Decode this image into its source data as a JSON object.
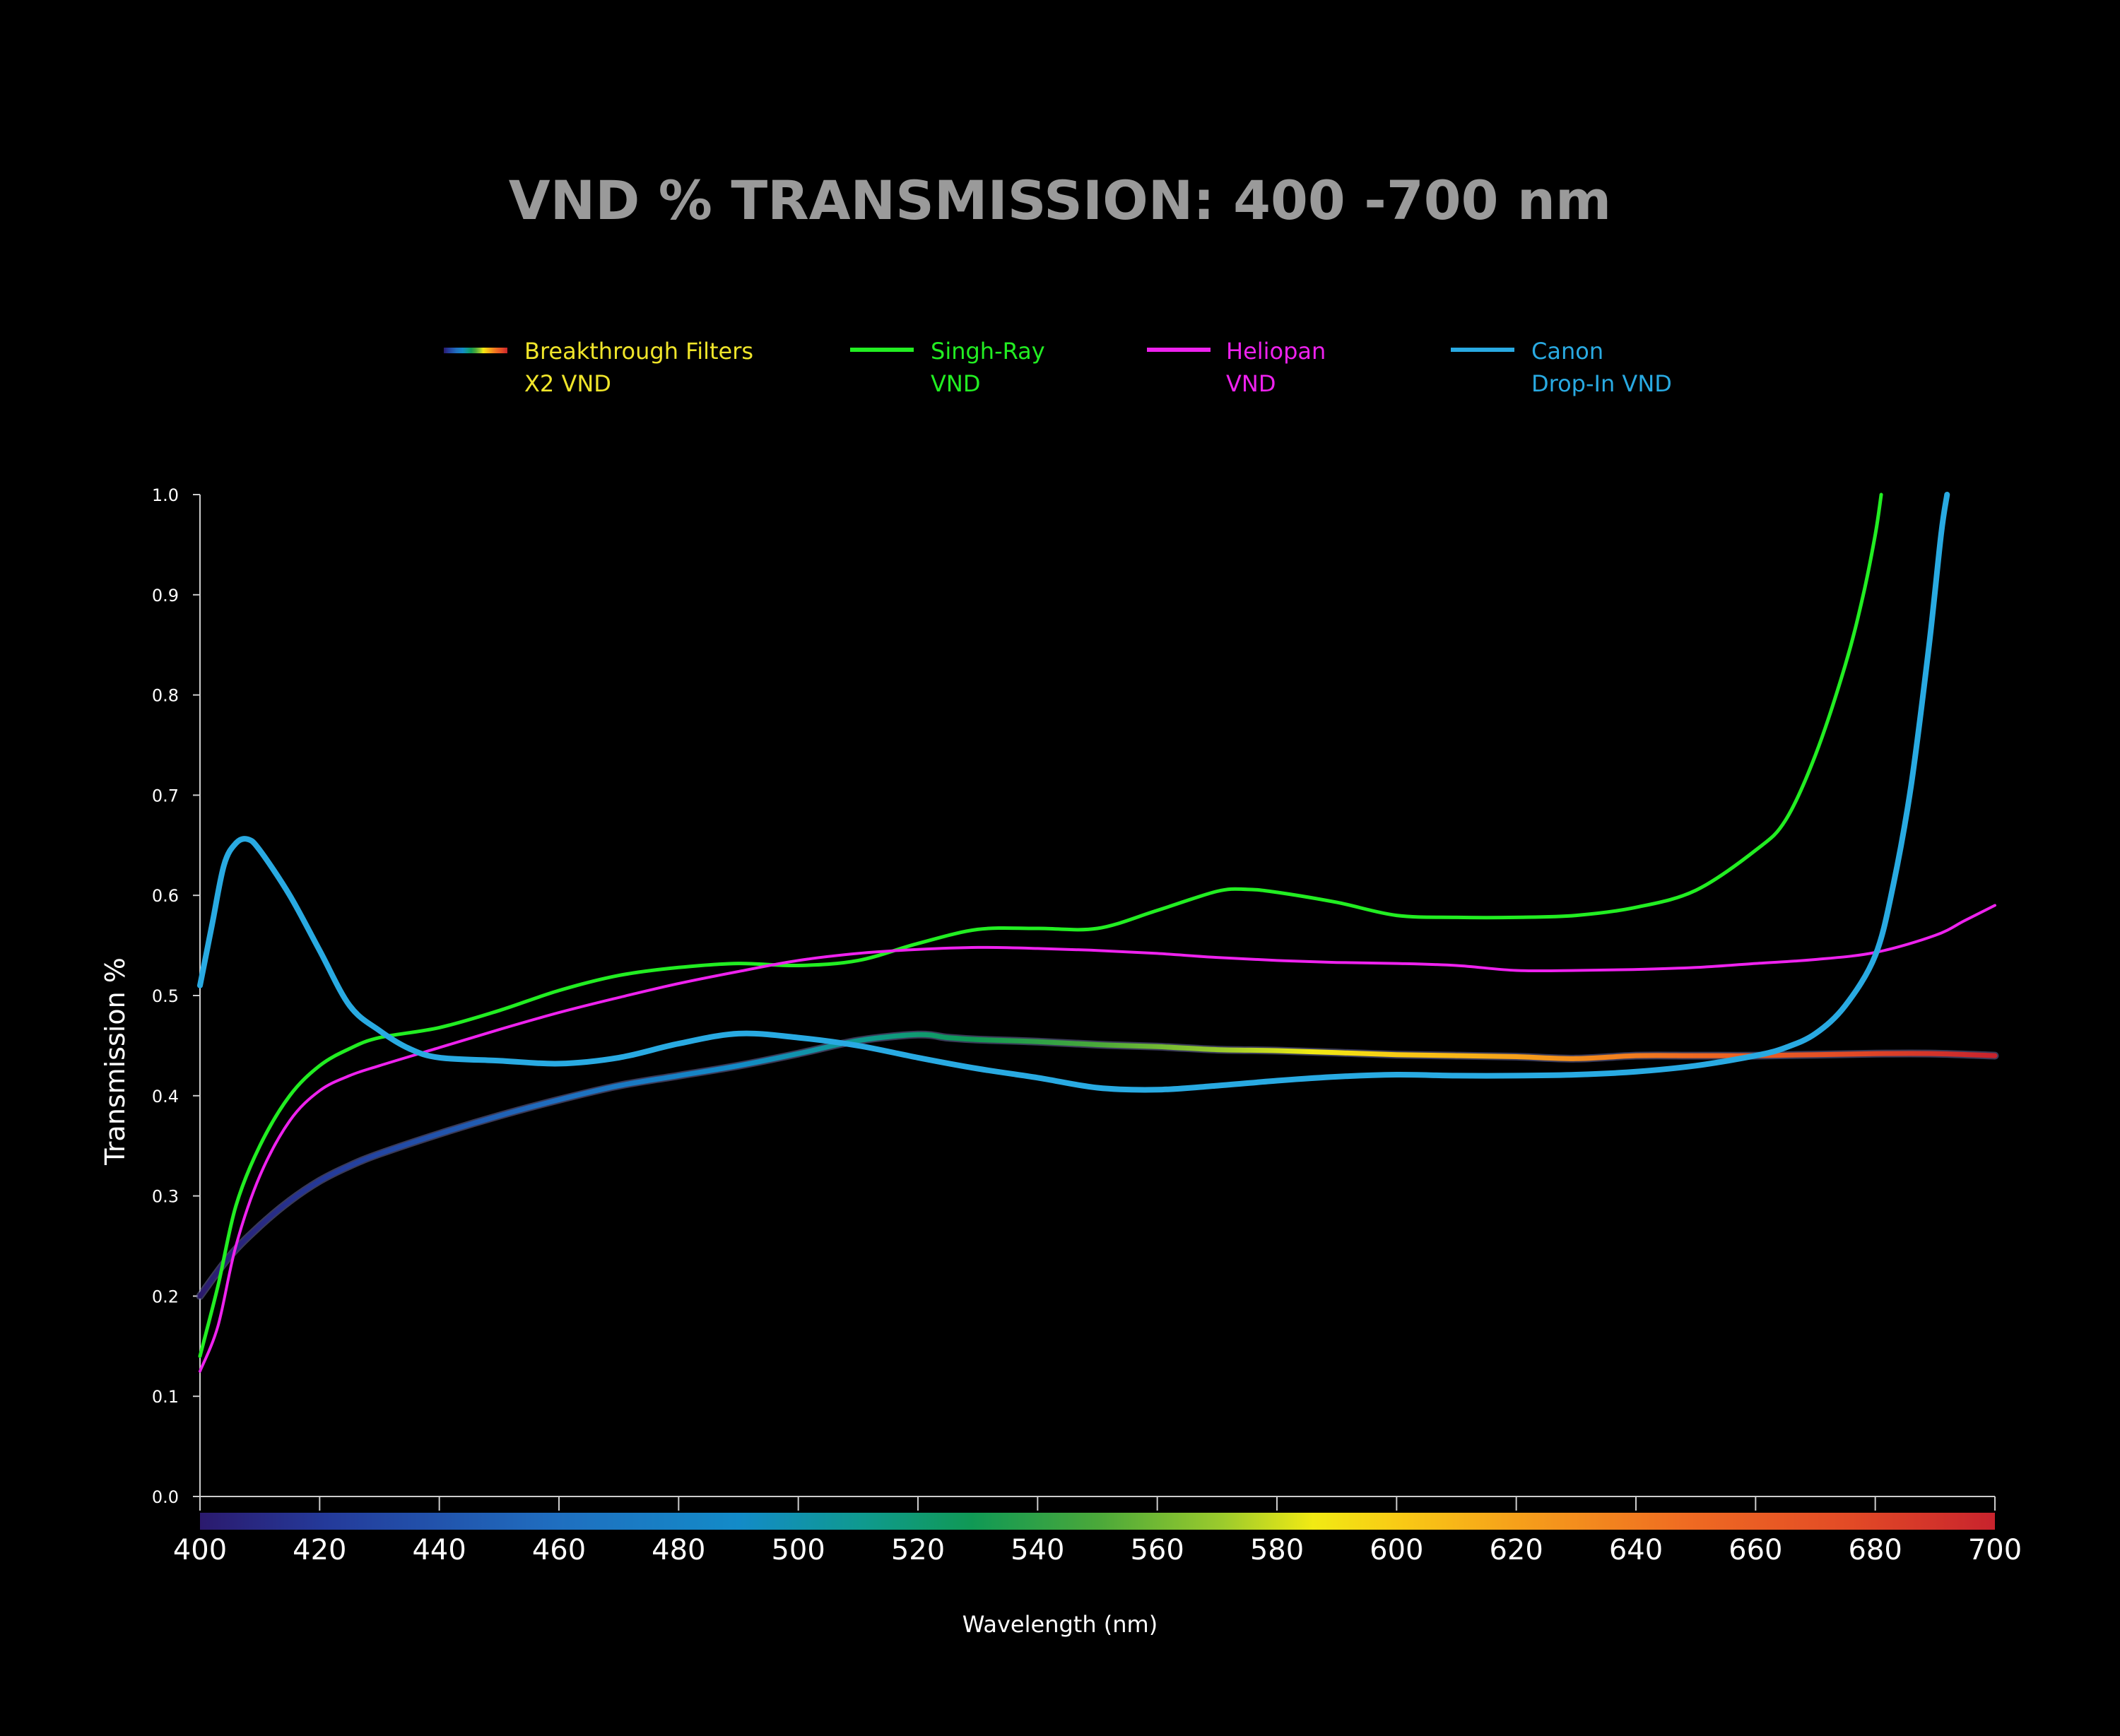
{
  "chart_data": {
    "type": "line",
    "title": "VND % TRANSMISSION: 400 -700 nm",
    "xlabel": "Wavelength (nm)",
    "ylabel": "Transmission %",
    "xlim": [
      400,
      700
    ],
    "ylim": [
      0,
      1.0
    ],
    "x_ticks": [
      "400",
      "420",
      "440",
      "460",
      "480",
      "500",
      "520",
      "540",
      "560",
      "580",
      "600",
      "620",
      "640",
      "660",
      "680",
      "700"
    ],
    "y_ticks": [
      "0.0",
      "0.1",
      "0.2",
      "0.3",
      "0.4",
      "0.5",
      "0.6",
      "0.7",
      "0.8",
      "0.9",
      "1.0"
    ],
    "grid": false,
    "legend_position": "top",
    "spectrum_bar": true,
    "series": [
      {
        "name_line1": "Breakthrough Filters",
        "name_line2": "X2 VND",
        "color": "spectrum",
        "label_color": "#f0e52a",
        "points": [
          [
            400,
            0.2
          ],
          [
            405,
            0.24
          ],
          [
            410,
            0.27
          ],
          [
            415,
            0.295
          ],
          [
            420,
            0.315
          ],
          [
            425,
            0.33
          ],
          [
            430,
            0.342
          ],
          [
            440,
            0.362
          ],
          [
            450,
            0.38
          ],
          [
            460,
            0.396
          ],
          [
            470,
            0.41
          ],
          [
            480,
            0.42
          ],
          [
            490,
            0.43
          ],
          [
            500,
            0.442
          ],
          [
            510,
            0.455
          ],
          [
            520,
            0.461
          ],
          [
            525,
            0.458
          ],
          [
            530,
            0.456
          ],
          [
            540,
            0.454
          ],
          [
            550,
            0.451
          ],
          [
            560,
            0.449
          ],
          [
            570,
            0.446
          ],
          [
            580,
            0.445
          ],
          [
            590,
            0.443
          ],
          [
            600,
            0.441
          ],
          [
            610,
            0.44
          ],
          [
            620,
            0.439
          ],
          [
            630,
            0.437
          ],
          [
            640,
            0.44
          ],
          [
            650,
            0.44
          ],
          [
            660,
            0.44
          ],
          [
            670,
            0.441
          ],
          [
            680,
            0.442
          ],
          [
            690,
            0.442
          ],
          [
            700,
            0.44
          ]
        ]
      },
      {
        "name_line1": "Singh-Ray",
        "name_line2": "VND",
        "color": "#22ee22",
        "label_color": "#22ee22",
        "points": [
          [
            400,
            0.14
          ],
          [
            403,
            0.21
          ],
          [
            406,
            0.29
          ],
          [
            410,
            0.35
          ],
          [
            415,
            0.4
          ],
          [
            420,
            0.43
          ],
          [
            425,
            0.447
          ],
          [
            430,
            0.458
          ],
          [
            440,
            0.468
          ],
          [
            450,
            0.485
          ],
          [
            460,
            0.505
          ],
          [
            470,
            0.52
          ],
          [
            480,
            0.528
          ],
          [
            490,
            0.532
          ],
          [
            500,
            0.53
          ],
          [
            510,
            0.535
          ],
          [
            520,
            0.552
          ],
          [
            530,
            0.566
          ],
          [
            540,
            0.567
          ],
          [
            550,
            0.567
          ],
          [
            560,
            0.585
          ],
          [
            570,
            0.604
          ],
          [
            575,
            0.606
          ],
          [
            580,
            0.603
          ],
          [
            590,
            0.593
          ],
          [
            600,
            0.58
          ],
          [
            610,
            0.578
          ],
          [
            620,
            0.578
          ],
          [
            630,
            0.58
          ],
          [
            640,
            0.588
          ],
          [
            650,
            0.605
          ],
          [
            660,
            0.645
          ],
          [
            665,
            0.675
          ],
          [
            670,
            0.74
          ],
          [
            675,
            0.83
          ],
          [
            678,
            0.9
          ],
          [
            680,
            0.96
          ],
          [
            681,
            1.0
          ]
        ]
      },
      {
        "name_line1": "Heliopan",
        "name_line2": "VND",
        "color": "#ee22ee",
        "label_color": "#ee22ee",
        "points": [
          [
            400,
            0.125
          ],
          [
            403,
            0.17
          ],
          [
            406,
            0.25
          ],
          [
            410,
            0.32
          ],
          [
            415,
            0.375
          ],
          [
            420,
            0.405
          ],
          [
            425,
            0.42
          ],
          [
            430,
            0.43
          ],
          [
            440,
            0.448
          ],
          [
            450,
            0.466
          ],
          [
            460,
            0.483
          ],
          [
            470,
            0.498
          ],
          [
            480,
            0.512
          ],
          [
            490,
            0.524
          ],
          [
            500,
            0.535
          ],
          [
            510,
            0.542
          ],
          [
            520,
            0.546
          ],
          [
            530,
            0.548
          ],
          [
            540,
            0.547
          ],
          [
            550,
            0.545
          ],
          [
            560,
            0.542
          ],
          [
            570,
            0.538
          ],
          [
            580,
            0.535
          ],
          [
            590,
            0.533
          ],
          [
            600,
            0.532
          ],
          [
            610,
            0.53
          ],
          [
            620,
            0.525
          ],
          [
            630,
            0.525
          ],
          [
            640,
            0.526
          ],
          [
            650,
            0.528
          ],
          [
            660,
            0.532
          ],
          [
            670,
            0.536
          ],
          [
            680,
            0.543
          ],
          [
            690,
            0.56
          ],
          [
            695,
            0.575
          ],
          [
            700,
            0.59
          ]
        ]
      },
      {
        "name_line1": "Canon",
        "name_line2": "Drop-In VND",
        "color": "#29aae2",
        "label_color": "#29aae2",
        "points": [
          [
            400,
            0.51
          ],
          [
            402,
            0.57
          ],
          [
            404,
            0.63
          ],
          [
            406,
            0.652
          ],
          [
            408,
            0.656
          ],
          [
            410,
            0.645
          ],
          [
            415,
            0.6
          ],
          [
            420,
            0.545
          ],
          [
            425,
            0.49
          ],
          [
            430,
            0.465
          ],
          [
            435,
            0.447
          ],
          [
            440,
            0.438
          ],
          [
            450,
            0.435
          ],
          [
            460,
            0.432
          ],
          [
            470,
            0.438
          ],
          [
            480,
            0.452
          ],
          [
            490,
            0.462
          ],
          [
            500,
            0.458
          ],
          [
            510,
            0.45
          ],
          [
            520,
            0.438
          ],
          [
            530,
            0.427
          ],
          [
            540,
            0.418
          ],
          [
            550,
            0.408
          ],
          [
            560,
            0.406
          ],
          [
            570,
            0.41
          ],
          [
            580,
            0.415
          ],
          [
            590,
            0.419
          ],
          [
            600,
            0.421
          ],
          [
            610,
            0.42
          ],
          [
            620,
            0.42
          ],
          [
            630,
            0.421
          ],
          [
            640,
            0.424
          ],
          [
            650,
            0.43
          ],
          [
            660,
            0.44
          ],
          [
            665,
            0.448
          ],
          [
            670,
            0.462
          ],
          [
            675,
            0.49
          ],
          [
            680,
            0.54
          ],
          [
            683,
            0.61
          ],
          [
            686,
            0.71
          ],
          [
            689,
            0.85
          ],
          [
            691,
            0.96
          ],
          [
            692,
            1.0
          ]
        ]
      }
    ]
  }
}
